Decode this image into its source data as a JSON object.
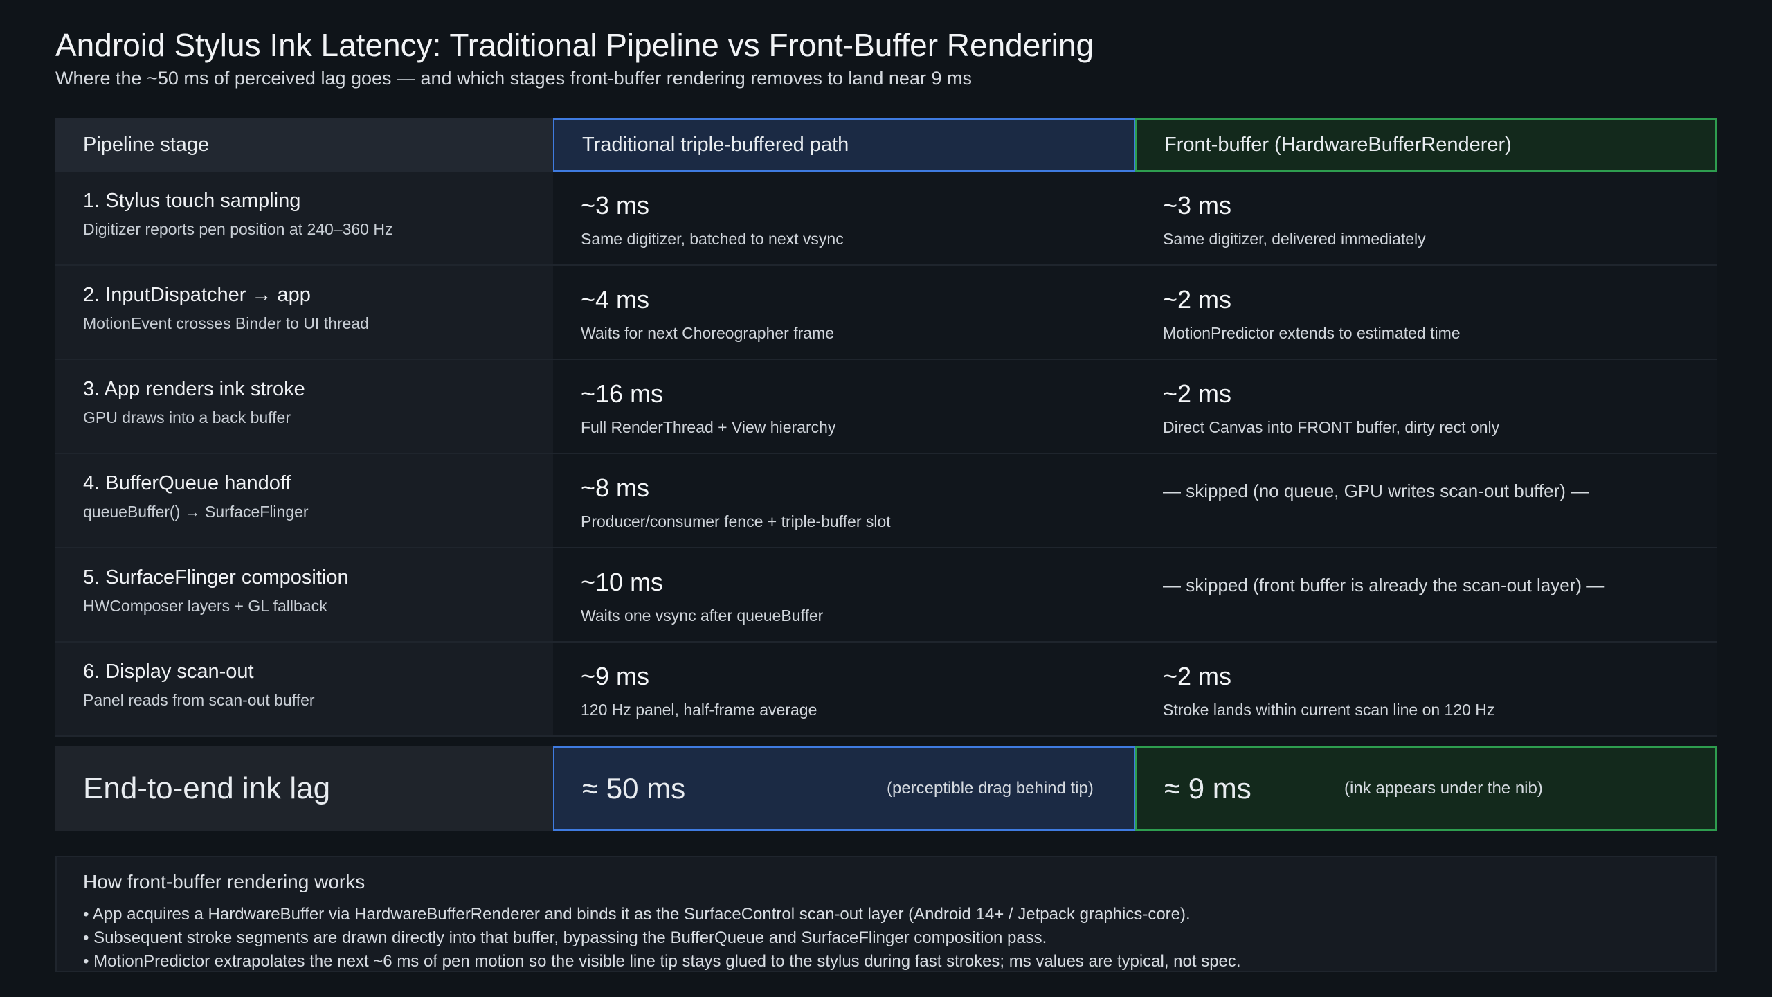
{
  "header": {
    "title": "Android Stylus Ink Latency: Traditional Pipeline vs Front-Buffer Rendering",
    "subtitle": "Where the ~50 ms of perceived lag goes — and which stages front-buffer rendering removes to land near 9 ms"
  },
  "table": {
    "headers": [
      "Pipeline stage",
      "Traditional triple-buffered path",
      "Front-buffer (HardwareBufferRenderer)"
    ],
    "rows": [
      [
        {
          "title": "1. Stylus touch sampling",
          "detail": "Digitizer reports pen position at 240–360 Hz"
        },
        {
          "value": "~3 ms",
          "note": "Same digitizer, batched to next vsync"
        },
        {
          "value": "~3 ms",
          "note": "Same digitizer, delivered immediately"
        }
      ],
      [
        {
          "title": "2. InputDispatcher → app",
          "detail": "MotionEvent crosses Binder to UI thread"
        },
        {
          "value": "~4 ms",
          "note": "Waits for next Choreographer frame"
        },
        {
          "value": "~2 ms",
          "note": "MotionPredictor extends to estimated time"
        }
      ],
      [
        {
          "title": "3. App renders ink stroke",
          "detail": "GPU draws into a back buffer"
        },
        {
          "value": "~16 ms",
          "note": "Full RenderThread + View hierarchy"
        },
        {
          "value": "~2 ms",
          "note": "Direct Canvas into FRONT buffer, dirty rect only"
        }
      ],
      [
        {
          "title": "4. BufferQueue handoff",
          "detail": "queueBuffer() → SurfaceFlinger"
        },
        {
          "value": "~8 ms",
          "note": "Producer/consumer fence + triple-buffer slot"
        },
        {
          "text": "— skipped (no queue, GPU writes scan-out buffer) —"
        }
      ],
      [
        {
          "title": "5. SurfaceFlinger composition",
          "detail": "HWComposer layers + GL fallback"
        },
        {
          "value": "~10 ms",
          "note": "Waits one vsync after queueBuffer"
        },
        {
          "text": "— skipped (front buffer is already the scan-out layer) —"
        }
      ],
      [
        {
          "title": "6. Display scan-out",
          "detail": "Panel reads from scan-out buffer"
        },
        {
          "value": "~9 ms",
          "note": "120 Hz panel, half-frame average"
        },
        {
          "value": "~2 ms",
          "note": "Stroke lands within current scan line on 120 Hz"
        }
      ]
    ],
    "total": {
      "label": "End-to-end ink lag",
      "traditional": {
        "value": "≈ 50 ms",
        "note": "(perceptible drag behind tip)"
      },
      "front": {
        "value": "≈ 9 ms",
        "note": "(ink appears under the nib)"
      }
    }
  },
  "notes": {
    "title": "How front-buffer rendering works",
    "items": [
      "• App acquires a HardwareBuffer via HardwareBufferRenderer and binds it as the SurfaceControl scan-out layer (Android 14+ / Jetpack graphics-core).",
      "• Subsequent stroke segments are drawn directly into that buffer, bypassing the BufferQueue and SurfaceFlinger composition pass.",
      "• MotionPredictor extrapolates the next ~6 ms of pen motion so the visible line tip stays glued to the stylus during fast strokes; ms values are typical, not spec."
    ]
  }
}
